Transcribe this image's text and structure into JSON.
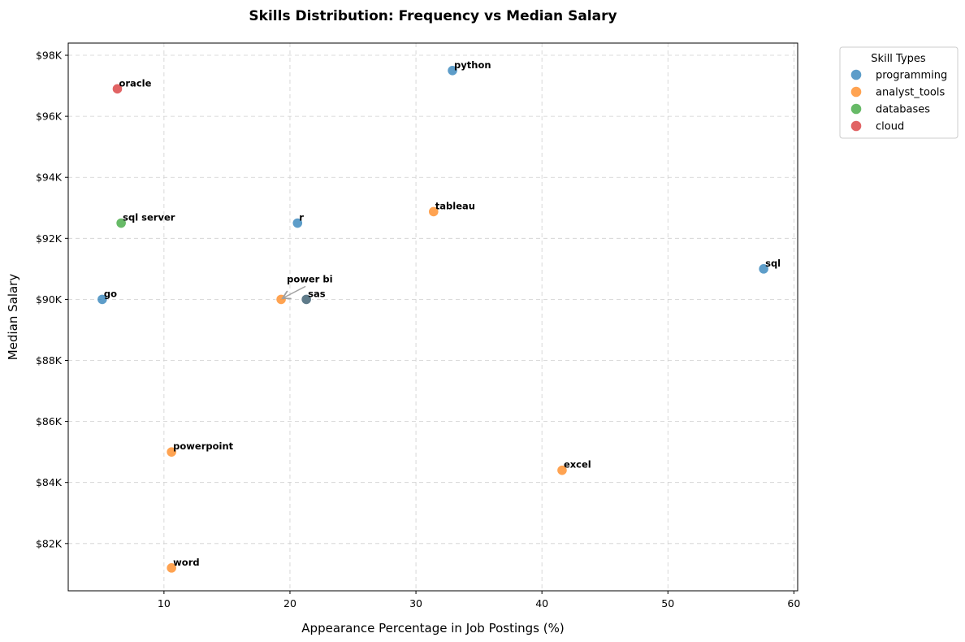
{
  "chart_data": {
    "type": "scatter",
    "title": "Skills Distribution: Frequency vs Median Salary",
    "xlabel": "Appearance Percentage in Job Postings (%)",
    "ylabel": "Median Salary",
    "xlim": [
      2.4,
      60.3
    ],
    "ylim": [
      80450,
      98400
    ],
    "x_ticks": [
      10,
      20,
      30,
      40,
      50,
      60
    ],
    "y_ticks": [
      82000,
      84000,
      86000,
      88000,
      90000,
      92000,
      94000,
      96000,
      98000
    ],
    "y_tick_labels": [
      "$82K",
      "$84K",
      "$86K",
      "$88K",
      "$90K",
      "$92K",
      "$94K",
      "$96K",
      "$98K"
    ],
    "grid": true,
    "legend": {
      "title": "Skill Types",
      "placement": "outside-top-right",
      "entries": [
        {
          "name": "programming",
          "color": "#1f77b4"
        },
        {
          "name": "analyst_tools",
          "color": "#ff7f0e"
        },
        {
          "name": "databases",
          "color": "#2ca02c"
        },
        {
          "name": "cloud",
          "color": "#d62728"
        }
      ]
    },
    "points": [
      {
        "label": "python",
        "x": 32.9,
        "y": 97500,
        "type": "programming"
      },
      {
        "label": "oracle",
        "x": 6.3,
        "y": 96900,
        "type": "cloud"
      },
      {
        "label": "tableau",
        "x": 31.4,
        "y": 92875,
        "type": "analyst_tools"
      },
      {
        "label": "sql server",
        "x": 6.6,
        "y": 92500,
        "type": "databases"
      },
      {
        "label": "r",
        "x": 20.6,
        "y": 92500,
        "type": "programming"
      },
      {
        "label": "sql",
        "x": 57.6,
        "y": 91000,
        "type": "programming"
      },
      {
        "label": "go",
        "x": 5.1,
        "y": 90000,
        "type": "programming"
      },
      {
        "label": "power bi",
        "x": 19.3,
        "y": 90000,
        "type": "analyst_tools",
        "arrow": true
      },
      {
        "label": "sas",
        "x": 21.3,
        "y": 90000,
        "type": "programming",
        "overlap_color": "#5f7b8a"
      },
      {
        "label": "powerpoint",
        "x": 10.6,
        "y": 85000,
        "type": "analyst_tools"
      },
      {
        "label": "excel",
        "x": 41.6,
        "y": 84400,
        "type": "analyst_tools"
      },
      {
        "label": "word",
        "x": 10.6,
        "y": 81200,
        "type": "analyst_tools"
      }
    ]
  }
}
